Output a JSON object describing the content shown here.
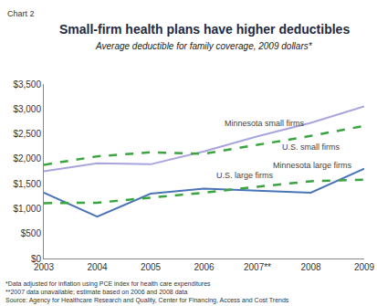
{
  "chart_data": {
    "type": "line",
    "label": "Chart 2",
    "title": "Small-firm health plans have higher deductibles",
    "subtitle": "Average deductible for family coverage, 2009 dollars*",
    "categories": [
      "2003",
      "2004",
      "2005",
      "2006",
      "2007**",
      "2008",
      "2009"
    ],
    "series": [
      {
        "name": "Minnesota small firms",
        "color": "#a8a4dc",
        "line_style": "solid",
        "values": [
          1750,
          1910,
          1890,
          2150,
          2450,
          2720,
          3050
        ]
      },
      {
        "name": "U.S. small firms",
        "color": "#3aa53f",
        "line_style": "dashed",
        "values": [
          1880,
          2050,
          2130,
          2100,
          2280,
          2460,
          2660
        ]
      },
      {
        "name": "Minnesota large firms",
        "color": "#4a74b8",
        "line_style": "solid",
        "values": [
          1320,
          840,
          1300,
          1400,
          1360,
          1320,
          1800
        ]
      },
      {
        "name": "U.S. large firms",
        "color": "#3aa53f",
        "line_style": "dashed",
        "values": [
          1110,
          1120,
          1220,
          1320,
          1440,
          1550,
          1580
        ]
      }
    ],
    "ylim": [
      0,
      3500
    ],
    "yticks": [
      {
        "value": 0,
        "label": "$0"
      },
      {
        "value": 500,
        "label": "$500"
      },
      {
        "value": 1000,
        "label": "$1,000"
      },
      {
        "value": 1500,
        "label": "$1,500"
      },
      {
        "value": 2000,
        "label": "$2,000"
      },
      {
        "value": 2500,
        "label": "$2,500"
      },
      {
        "value": 3000,
        "label": "$3,000"
      },
      {
        "value": 3500,
        "label": "$3,500"
      }
    ],
    "grid": false,
    "notes": [
      "*Data adjusted for inflation using PCE index for health care expenditures",
      "**2007 data unavailable; estimate based on 2006 and 2008 data",
      "Source: Agency for Healthcare Research and Quality, Center for Financing, Access and Cost Trends"
    ]
  }
}
